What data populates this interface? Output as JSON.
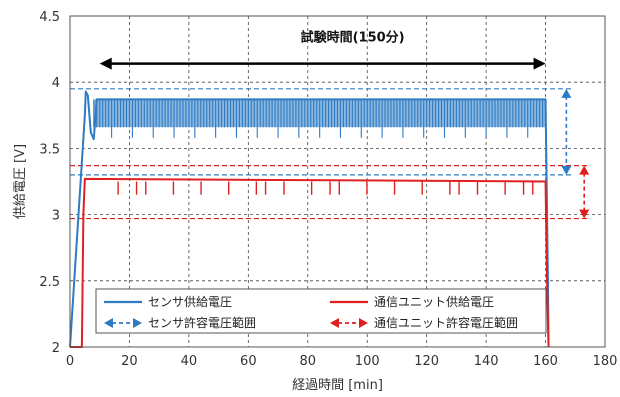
{
  "chart_data": {
    "type": "line",
    "xlabel": "経過時間 [min]",
    "ylabel": "供給電圧 [V]",
    "xlim": [
      0,
      180
    ],
    "ylim": [
      2,
      4.5
    ],
    "xticks": [
      0,
      20,
      40,
      60,
      80,
      100,
      120,
      140,
      160,
      180
    ],
    "yticks": [
      2,
      2.5,
      3,
      3.5,
      4,
      4.5
    ],
    "x_tick_labels": [
      "0",
      "20",
      "40",
      "60",
      "80",
      "100",
      "120",
      "140",
      "160",
      "180"
    ],
    "y_tick_labels": [
      "2",
      "2.5",
      "3",
      "3.5",
      "4",
      "4.5"
    ],
    "grid": true,
    "annotation": {
      "text": "試験時間(150分)",
      "x_start": 10,
      "x_end": 160,
      "y": 4.14
    },
    "series": [
      {
        "name": "センサ供給電圧",
        "color": "#2e7bc4",
        "band": {
          "x_start": 8,
          "x_end": 160,
          "y_high": 3.87,
          "y_low": 3.66,
          "spike_low": 3.58
        },
        "x": [
          0,
          5,
          5.3,
          6,
          7,
          8,
          9,
          160,
          160.8,
          161
        ],
        "y": [
          2.0,
          3.75,
          3.93,
          3.9,
          3.62,
          3.57,
          3.87,
          3.87,
          2.5,
          2.0
        ]
      },
      {
        "name": "通信ユニット供給電圧",
        "color": "#e02020",
        "band": {
          "x_start": 5,
          "x_end": 160,
          "y_level": 3.25,
          "spike_low": 3.15
        },
        "x": [
          0,
          4,
          4.5,
          5,
          160,
          160.5,
          161
        ],
        "y": [
          2.0,
          2.0,
          3.0,
          3.27,
          3.25,
          2.5,
          2.0
        ]
      },
      {
        "name": "センサ許容電圧範囲",
        "color": "#2e7bc4",
        "range": [
          3.3,
          3.95
        ],
        "arrow_x": 167
      },
      {
        "name": "通信ユニット許容電圧範囲",
        "color": "#e02020",
        "range": [
          2.97,
          3.37
        ],
        "arrow_x": 173
      }
    ],
    "legend_placement": "bottom"
  }
}
